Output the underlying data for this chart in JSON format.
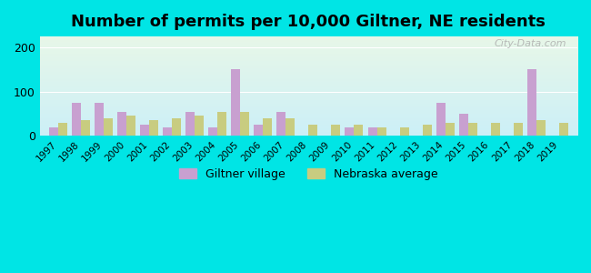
{
  "title": "Number of permits per 10,000 Giltner, NE residents",
  "years": [
    1997,
    1998,
    1999,
    2000,
    2001,
    2002,
    2003,
    2004,
    2005,
    2006,
    2007,
    2008,
    2009,
    2010,
    2011,
    2012,
    2013,
    2014,
    2015,
    2016,
    2017,
    2018,
    2019
  ],
  "giltner": [
    20,
    75,
    75,
    55,
    25,
    20,
    55,
    20,
    150,
    25,
    55,
    0,
    0,
    20,
    20,
    0,
    0,
    75,
    50,
    0,
    0,
    150,
    0
  ],
  "nebraska": [
    30,
    35,
    40,
    45,
    35,
    40,
    45,
    55,
    55,
    40,
    40,
    25,
    25,
    25,
    20,
    20,
    25,
    30,
    30,
    30,
    30,
    35,
    30
  ],
  "giltner_color": "#c8a0d0",
  "nebraska_color": "#c8cc80",
  "background_outer": "#00e5e5",
  "ylim": [
    0,
    225
  ],
  "yticks": [
    0,
    100,
    200
  ],
  "bar_width": 0.4,
  "legend_giltner": "Giltner village",
  "legend_nebraska": "Nebraska average",
  "watermark": "City-Data.com"
}
